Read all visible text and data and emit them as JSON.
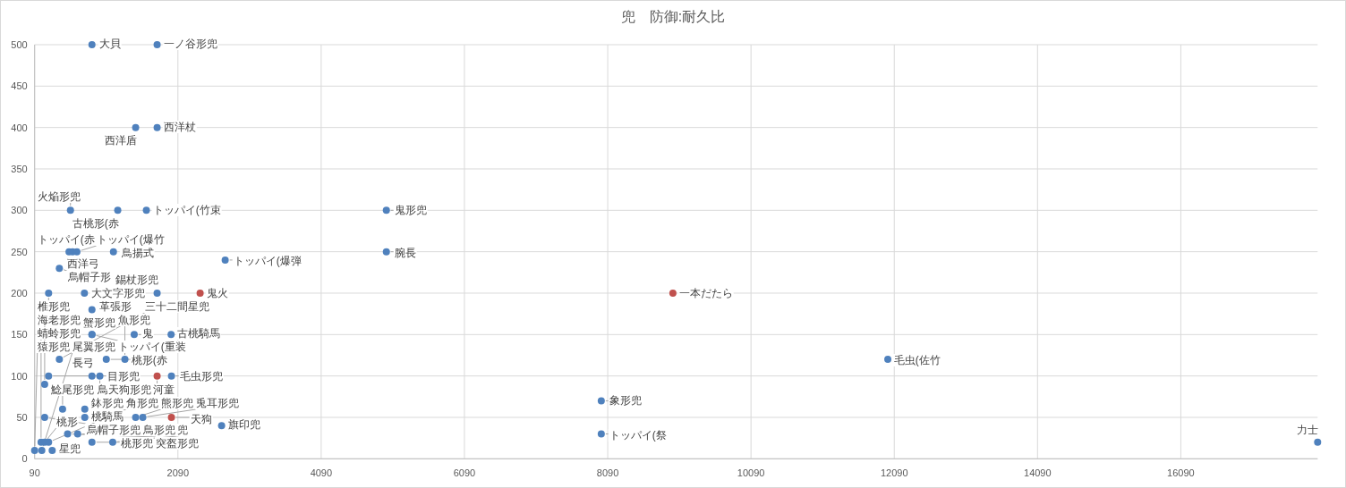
{
  "chart_data": {
    "type": "scatter",
    "title": "兜　防御:耐久比",
    "marker": "circle",
    "grid": true,
    "xlim": [
      90,
      18000
    ],
    "xticks": [
      90,
      2090,
      4090,
      6090,
      8090,
      10090,
      12090,
      14090,
      16090
    ],
    "ylim": [
      0,
      500
    ],
    "yticks": [
      0,
      50,
      100,
      150,
      200,
      250,
      300,
      350,
      400,
      450,
      500
    ],
    "series": [
      {
        "color": "#4f81bd",
        "x": [
          890,
          1800,
          1500,
          1800,
          590,
          1250,
          1650,
          5000,
          570,
          620,
          680,
          1190,
          5000,
          2750,
          435,
          285,
          785,
          1800,
          890,
          890,
          890,
          1480,
          1995,
          435,
          1090,
          1350,
          12000,
          285,
          890,
          1000,
          2000,
          230,
          8000,
          480,
          790,
          230,
          790,
          1500,
          1600,
          2700,
          550,
          690,
          8000,
          180,
          230,
          285,
          890,
          1180,
          18000,
          90,
          190,
          335
        ],
        "values": [
          500,
          500,
          400,
          400,
          300,
          300,
          300,
          300,
          250,
          250,
          250,
          250,
          250,
          240,
          230,
          200,
          200,
          200,
          180,
          150,
          150,
          150,
          150,
          120,
          120,
          120,
          120,
          100,
          100,
          100,
          100,
          90,
          70,
          60,
          60,
          50,
          50,
          50,
          50,
          40,
          30,
          30,
          30,
          20,
          20,
          20,
          20,
          20,
          20,
          10,
          10,
          10
        ],
        "value_labels": [
          "大貝",
          "一ノ谷形兜",
          "西洋盾",
          "西洋杖",
          "火焔形兜",
          "古桃形(赤",
          "トッパイ(竹束",
          "鬼形兜",
          "西洋弓",
          "トッパイ(赤",
          "トッパイ(爆竹",
          "鳥揚式",
          "腕長",
          "トッパイ(爆弾",
          "烏帽子形",
          "椎形兜",
          "大文字形兜",
          "錫杖形兜",
          "革張形",
          "蟹形兜",
          "トッパイ(重装",
          "鬼",
          "古桃騎馬",
          "三十二間星兜",
          "桃形(赤",
          "魚形兜",
          "毛虫(佐竹",
          "目形兜",
          "長弓",
          "鳥天狗形兜",
          "毛虫形兜",
          "海老形兜",
          "象形兜",
          "鯰尾形兜",
          "鉢形兜",
          "烏帽子形兜",
          "桃騎馬",
          "熊形兜",
          "兎耳形兜",
          "旗印兜",
          "突盔形兜",
          "鳥形兜",
          "トッパイ(祭",
          "蜻蛉形兜",
          "桃形",
          "角形兜",
          "桃形兜",
          "兜",
          "力士",
          "猿形兜",
          "尾翼形兜",
          "星兜"
        ]
      },
      {
        "color": "#c0504d",
        "x": [
          2400,
          1800,
          2000,
          9000
        ],
        "values": [
          200,
          100,
          50,
          200
        ],
        "value_labels": [
          "鬼火",
          "河童",
          "天狗",
          "一本だたら"
        ]
      }
    ]
  }
}
